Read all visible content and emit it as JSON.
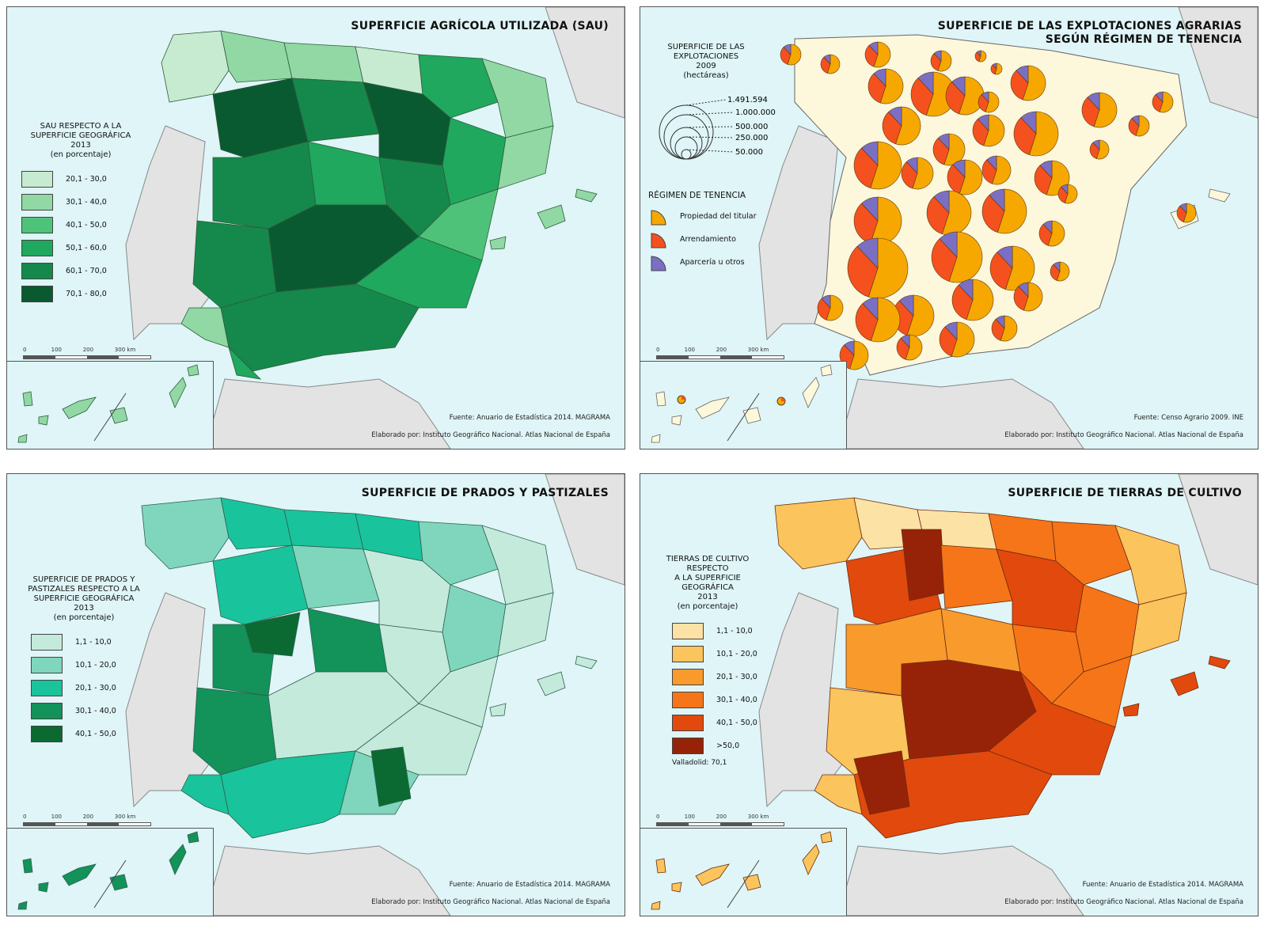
{
  "panels": [
    {
      "id": "sau",
      "title_lines": [
        "SUPERFICIE AGRÍCOLA UTILIZADA (SAU)"
      ],
      "legend_title_lines": [
        "SAU RESPECTO A LA",
        "SUPERFICIE GEOGRÁFICA",
        "2013",
        "(en porcentaje)"
      ],
      "legend": [
        {
          "label": "20,1 - 30,0",
          "color": "#c7ebd0"
        },
        {
          "label": "30,1 - 40,0",
          "color": "#91d8a4"
        },
        {
          "label": "40,1 - 50,0",
          "color": "#4fc27a"
        },
        {
          "label": "50,1 - 60,0",
          "color": "#1fa85e"
        },
        {
          "label": "60,1 - 70,0",
          "color": "#15894b"
        },
        {
          "label": "70,1 - 80,0",
          "color": "#0a5a31"
        }
      ],
      "source": "Fuente: Anuario de Estadística 2014. MAGRAMA",
      "credit": "Elaborado por: Instituto Geográfico Nacional. Atlas Nacional de España"
    },
    {
      "id": "explotaciones",
      "title_lines": [
        "SUPERFICIE DE LAS EXPLOTACIONES AGRARIAS",
        "SEGÚN RÉGIMEN DE TENENCIA"
      ],
      "size_legend_title_lines": [
        "SUPERFICIE DE LAS",
        "EXPLOTACIONES",
        "2009",
        "(hectáreas)"
      ],
      "size_legend": [
        "1.491.594",
        "1.000.000",
        "500.000",
        "250.000",
        "50.000"
      ],
      "tenure_title": "RÉGIMEN DE TENENCIA",
      "tenure": [
        {
          "label": "Propiedad del titular",
          "color": "#f6a800"
        },
        {
          "label": "Arrendamiento",
          "color": "#f4511e"
        },
        {
          "label": "Aparcería u otros",
          "color": "#7b6fc4"
        }
      ],
      "source": "Fuente: Censo Agrario 2009. INE",
      "credit": "Elaborado por: Instituto Geográfico Nacional. Atlas Nacional de España"
    },
    {
      "id": "prados",
      "title_lines": [
        "SUPERFICIE DE PRADOS Y PASTIZALES"
      ],
      "legend_title_lines": [
        "SUPERFICIE DE PRADOS Y",
        "PASTIZALES RESPECTO A LA",
        "SUPERFICIE GEOGRÁFICA",
        "2013",
        "(en porcentaje)"
      ],
      "legend": [
        {
          "label": "1,1 - 10,0",
          "color": "#c4eadb"
        },
        {
          "label": "10,1 - 20,0",
          "color": "#7fd6bd"
        },
        {
          "label": "20,1 - 30,0",
          "color": "#19c39b"
        },
        {
          "label": "30,1 - 40,0",
          "color": "#13925a"
        },
        {
          "label": "40,1 - 50,0",
          "color": "#0b6a32"
        }
      ],
      "source": "Fuente: Anuario de Estadística 2014. MAGRAMA",
      "credit": "Elaborado por: Instituto Geográfico Nacional. Atlas Nacional de España"
    },
    {
      "id": "cultivo",
      "title_lines": [
        "SUPERFICIE DE TIERRAS DE CULTIVO"
      ],
      "legend_title_lines": [
        "TIERRAS DE CULTIVO RESPECTO",
        "A LA SUPERFICIE GEOGRÁFICA",
        "2013",
        "(en porcentaje)"
      ],
      "legend": [
        {
          "label": "1,1 - 10,0",
          "color": "#fde2a6"
        },
        {
          "label": "10,1 - 20,0",
          "color": "#fbc45c"
        },
        {
          "label": "20,1 - 30,0",
          "color": "#f89a2c"
        },
        {
          "label": "30,1 - 40,0",
          "color": "#f57518"
        },
        {
          "label": "40,1 - 50,0",
          "color": "#e2490c"
        },
        {
          "label": ">50,0",
          "color": "#962308"
        }
      ],
      "note": "Valladolid: 70,1",
      "source": "Fuente: Anuario de Estadística 2014. MAGRAMA",
      "credit": "Elaborado por: Instituto Geográfico Nacional. Atlas Nacional de España"
    }
  ],
  "scale": {
    "ticks": [
      "0",
      "100",
      "200",
      "300"
    ],
    "unit": "km"
  },
  "colors": {
    "sea": "#dff5f7",
    "land_other": "#e3e3e3",
    "border": "#555555"
  }
}
